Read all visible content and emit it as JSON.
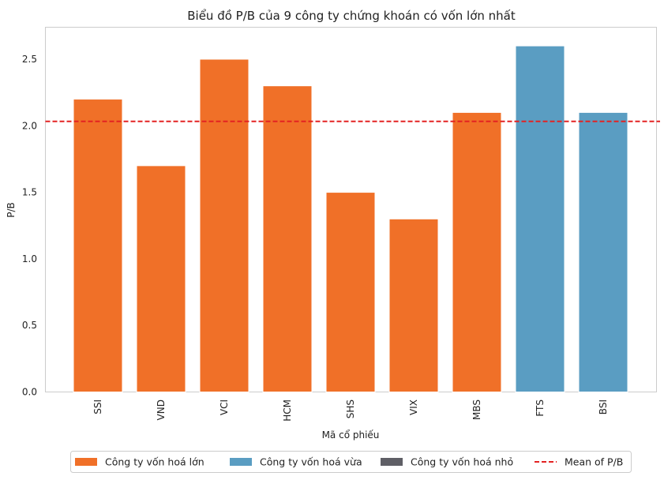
{
  "chart_data": {
    "type": "bar",
    "title": "Biểu đồ P/B của 9 công ty chứng khoán có vốn lớn nhất",
    "xlabel": "Mã cổ phiếu",
    "ylabel": "P/B",
    "categories": [
      "SSI",
      "VND",
      "VCI",
      "HCM",
      "SHS",
      "VIX",
      "MBS",
      "FTS",
      "BSI"
    ],
    "values": [
      2.2,
      1.7,
      2.5,
      2.3,
      1.5,
      1.3,
      2.1,
      2.6,
      2.1
    ],
    "groups": [
      "lon",
      "lon",
      "lon",
      "lon",
      "lon",
      "lon",
      "lon",
      "vua",
      "vua"
    ],
    "group_colors": {
      "lon": "#f07028",
      "vua": "#5a9dc2",
      "nho": "#5f5f66"
    },
    "yticks": [
      "0.0",
      "0.5",
      "1.0",
      "1.5",
      "2.0",
      "2.5"
    ],
    "ylim": [
      0,
      2.74
    ],
    "mean": 2.033,
    "mean_color": "#e32222",
    "grid": false,
    "legend_position": "bottom-center",
    "legend": [
      {
        "label": "Công ty vốn hoá lớn",
        "kind": "patch",
        "color": "#f07028"
      },
      {
        "label": "Công ty vốn hoá vừa",
        "kind": "patch",
        "color": "#5a9dc2"
      },
      {
        "label": "Công ty vốn hoá nhỏ",
        "kind": "patch",
        "color": "#5f5f66"
      },
      {
        "label": "Mean of P/B",
        "kind": "dashed-line",
        "color": "#e32222"
      }
    ]
  }
}
